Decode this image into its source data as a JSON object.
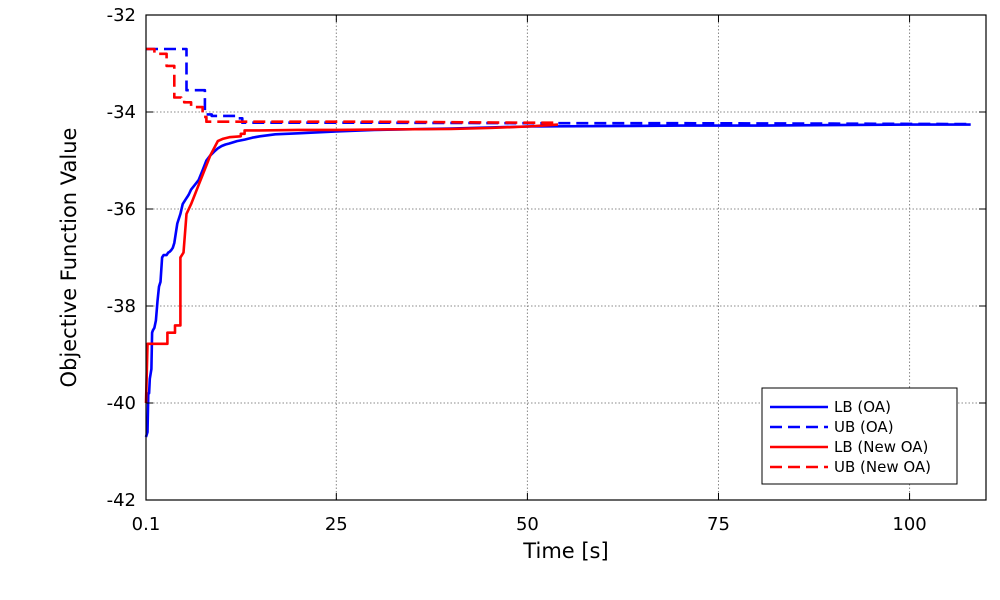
{
  "chart_data": {
    "type": "line",
    "title": "",
    "xlabel": "Time [s]",
    "ylabel": "Objective Function Value",
    "xlim": [
      0.1,
      110
    ],
    "ylim": [
      -42,
      -32
    ],
    "xticks": [
      0.1,
      25,
      50,
      75,
      100
    ],
    "xtick_labels": [
      "0.1",
      "25",
      "50",
      "75",
      "100"
    ],
    "yticks": [
      -42,
      -40,
      -38,
      -36,
      -34,
      -32
    ],
    "ytick_labels": [
      "-42",
      "-40",
      "-38",
      "-36",
      "-34",
      "-32"
    ],
    "grid": true,
    "legend_position": "bottom-right",
    "series": [
      {
        "name": "LB (OA)",
        "color": "#0000ff",
        "dash": "solid",
        "x": [
          0.1,
          0.3,
          0.4,
          0.5,
          0.6,
          0.7,
          0.8,
          0.9,
          1.0,
          1.2,
          1.4,
          1.6,
          1.8,
          2.0,
          2.2,
          2.4,
          2.6,
          2.8,
          3.0,
          3.2,
          3.4,
          3.6,
          3.8,
          4.2,
          4.6,
          4.9,
          5.1,
          5.3,
          5.5,
          5.7,
          6.0,
          6.5,
          7.0,
          7.5,
          8.0,
          8.5,
          9.0,
          9.5,
          10.0,
          10.5,
          11.0,
          12.0,
          13.0,
          14.0,
          15.0,
          17.0,
          20.0,
          25.0,
          30.0,
          40.0,
          50.0,
          60.0,
          70.0,
          80.0,
          90.0,
          100.0,
          105.0,
          108.0
        ],
        "y": [
          -40.7,
          -40.6,
          -39.8,
          -39.8,
          -39.5,
          -39.4,
          -39.3,
          -38.55,
          -38.5,
          -38.45,
          -38.3,
          -37.9,
          -37.6,
          -37.5,
          -37.0,
          -36.95,
          -36.95,
          -36.95,
          -36.9,
          -36.88,
          -36.85,
          -36.8,
          -36.7,
          -36.3,
          -36.1,
          -35.9,
          -35.85,
          -35.8,
          -35.75,
          -35.7,
          -35.6,
          -35.5,
          -35.4,
          -35.2,
          -35.0,
          -34.9,
          -34.82,
          -34.75,
          -34.7,
          -34.67,
          -34.65,
          -34.6,
          -34.57,
          -34.53,
          -34.5,
          -34.46,
          -34.44,
          -34.4,
          -34.37,
          -34.34,
          -34.3,
          -34.29,
          -34.28,
          -34.28,
          -34.27,
          -34.26,
          -34.26,
          -34.26
        ]
      },
      {
        "name": "UB (OA)",
        "color": "#0000ff",
        "dash": "dashed",
        "x": [
          0.1,
          5.4,
          5.4,
          7.8,
          7.8,
          8.7,
          8.7,
          11.8,
          11.8,
          12.7,
          12.7,
          20.0,
          30.0,
          50.0,
          70.0,
          90.0,
          108.0
        ],
        "y": [
          -32.7,
          -32.7,
          -33.55,
          -33.55,
          -34.05,
          -34.05,
          -34.08,
          -34.08,
          -34.13,
          -34.13,
          -34.22,
          -34.22,
          -34.22,
          -34.23,
          -34.23,
          -34.24,
          -34.25
        ]
      },
      {
        "name": "LB (New OA)",
        "color": "#ff0000",
        "dash": "solid",
        "x": [
          0.1,
          0.3,
          0.3,
          2.9,
          2.9,
          3.9,
          3.9,
          4.6,
          4.6,
          5.0,
          5.4,
          6.0,
          6.5,
          7.0,
          7.5,
          8.0,
          8.5,
          9.0,
          9.5,
          10.2,
          10.2,
          11.0,
          12.5,
          12.5,
          13.0,
          13.0,
          15.0,
          20.0,
          25.0,
          30.0,
          40.0,
          45.0,
          50.0,
          52.0,
          54.0
        ],
        "y": [
          -40.0,
          -38.8,
          -38.78,
          -38.78,
          -38.55,
          -38.55,
          -38.4,
          -38.4,
          -37.0,
          -36.9,
          -36.1,
          -35.9,
          -35.7,
          -35.5,
          -35.3,
          -35.1,
          -34.9,
          -34.75,
          -34.6,
          -34.55,
          -34.55,
          -34.52,
          -34.5,
          -34.45,
          -34.45,
          -34.38,
          -34.38,
          -34.37,
          -34.37,
          -34.36,
          -34.35,
          -34.33,
          -34.3,
          -34.28,
          -34.26
        ]
      },
      {
        "name": "UB (New OA)",
        "color": "#ff0000",
        "dash": "dashed",
        "x": [
          0.1,
          1.2,
          1.2,
          2.8,
          2.8,
          3.8,
          3.8,
          4.7,
          4.7,
          5.1,
          5.1,
          6.0,
          6.0,
          7.5,
          7.5,
          8.0,
          8.0,
          20.0,
          30.0,
          40.0,
          50.0,
          54.0
        ],
        "y": [
          -32.7,
          -32.7,
          -32.8,
          -32.8,
          -33.05,
          -33.05,
          -33.7,
          -33.7,
          -33.72,
          -33.72,
          -33.8,
          -33.8,
          -33.9,
          -33.9,
          -34.1,
          -34.1,
          -34.2,
          -34.2,
          -34.2,
          -34.21,
          -34.22,
          -34.22
        ]
      }
    ]
  }
}
